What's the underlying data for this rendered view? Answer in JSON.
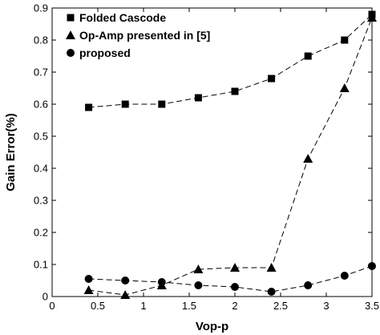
{
  "chart_data": {
    "type": "line",
    "xlabel": "Vop-p",
    "ylabel": "Gain Error(%)",
    "xlim": [
      0,
      3.5
    ],
    "ylim": [
      0,
      0.9
    ],
    "xticks": [
      "0",
      "0.5",
      "1",
      "1.5",
      "2",
      "2.5",
      "3",
      "3.5"
    ],
    "yticks": [
      "0",
      "0.1",
      "0.2",
      "0.3",
      "0.4",
      "0.5",
      "0.6",
      "0.7",
      "0.8",
      "0.9"
    ],
    "grid": false,
    "legend": "top-left",
    "series": [
      {
        "name": "Folded Cascode",
        "marker": "square",
        "x": [
          0.4,
          0.8,
          1.2,
          1.6,
          2.0,
          2.4,
          2.8,
          3.2,
          3.5
        ],
        "y": [
          0.59,
          0.6,
          0.6,
          0.62,
          0.64,
          0.68,
          0.75,
          0.8,
          0.88
        ]
      },
      {
        "name": "Op-Amp presented in [5]",
        "marker": "triangle",
        "x": [
          0.4,
          0.8,
          1.2,
          1.6,
          2.0,
          2.4,
          2.8,
          3.2,
          3.5
        ],
        "y": [
          0.02,
          0.005,
          0.035,
          0.085,
          0.09,
          0.09,
          0.43,
          0.65,
          0.87
        ]
      },
      {
        "name": "proposed",
        "marker": "circle",
        "x": [
          0.4,
          0.8,
          1.2,
          1.6,
          2.0,
          2.4,
          2.8,
          3.2,
          3.5
        ],
        "y": [
          0.055,
          0.05,
          0.045,
          0.035,
          0.03,
          0.015,
          0.035,
          0.065,
          0.095
        ]
      }
    ]
  }
}
